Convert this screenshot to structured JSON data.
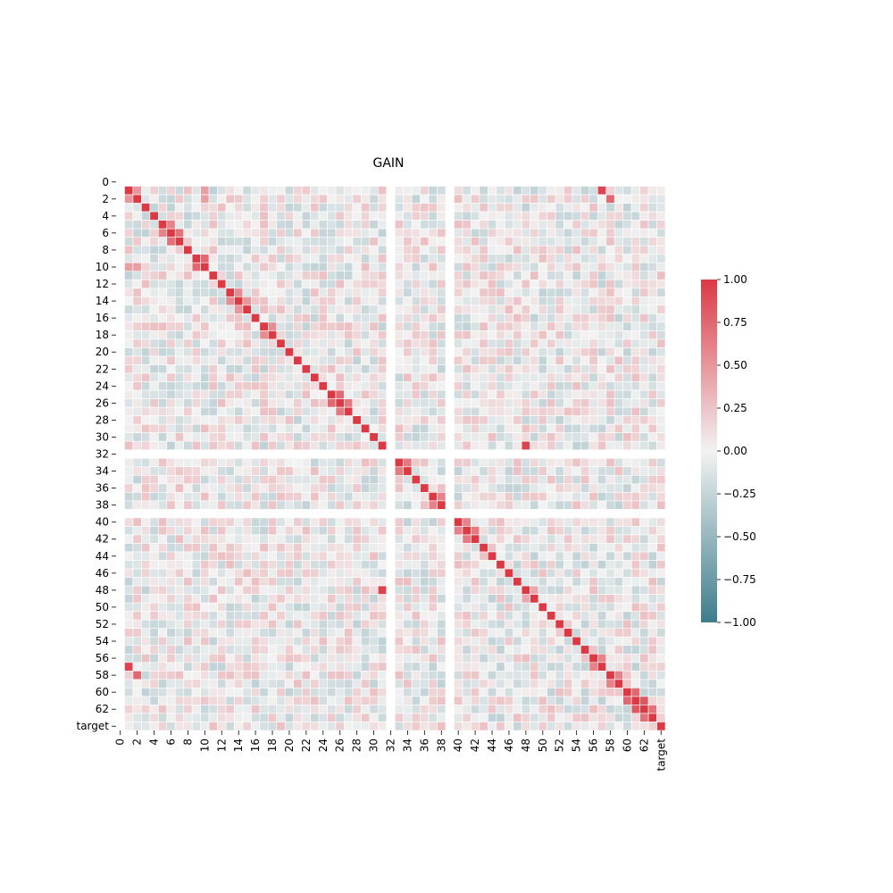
{
  "chart_data": {
    "type": "heatmap",
    "title": "GAIN",
    "xlabel": "",
    "ylabel": "",
    "n": 65,
    "x_tick_labels": [
      "0",
      "2",
      "4",
      "6",
      "8",
      "10",
      "12",
      "14",
      "16",
      "18",
      "20",
      "22",
      "24",
      "26",
      "28",
      "30",
      "32",
      "34",
      "36",
      "38",
      "40",
      "42",
      "44",
      "46",
      "48",
      "50",
      "52",
      "54",
      "56",
      "58",
      "60",
      "62",
      "target"
    ],
    "y_tick_labels": [
      "0",
      "2",
      "4",
      "6",
      "8",
      "10",
      "12",
      "14",
      "16",
      "18",
      "20",
      "22",
      "24",
      "26",
      "28",
      "30",
      "32",
      "34",
      "36",
      "38",
      "40",
      "42",
      "44",
      "46",
      "48",
      "50",
      "52",
      "54",
      "56",
      "58",
      "60",
      "62",
      "target"
    ],
    "blank_indices": [
      0,
      32,
      39
    ],
    "strong_pairs": [
      {
        "x": 1,
        "y": 2,
        "value": 0.5
      },
      {
        "x": 1,
        "y": 10,
        "value": 0.45
      },
      {
        "x": 2,
        "y": 10,
        "value": 0.45
      },
      {
        "x": 1,
        "y": 57,
        "value": 0.95
      },
      {
        "x": 2,
        "y": 58,
        "value": 0.75
      },
      {
        "x": 5,
        "y": 6,
        "value": 0.6
      },
      {
        "x": 6,
        "y": 7,
        "value": 0.7
      },
      {
        "x": 9,
        "y": 10,
        "value": 0.75
      },
      {
        "x": 13,
        "y": 14,
        "value": 0.55
      },
      {
        "x": 14,
        "y": 15,
        "value": 0.5
      },
      {
        "x": 17,
        "y": 18,
        "value": 0.55
      },
      {
        "x": 25,
        "y": 26,
        "value": 0.75
      },
      {
        "x": 26,
        "y": 27,
        "value": 0.65
      },
      {
        "x": 31,
        "y": 48,
        "value": 0.95
      },
      {
        "x": 33,
        "y": 34,
        "value": 0.65
      },
      {
        "x": 37,
        "y": 38,
        "value": 0.6
      },
      {
        "x": 40,
        "y": 41,
        "value": 0.6
      },
      {
        "x": 41,
        "y": 42,
        "value": 0.65
      },
      {
        "x": 48,
        "y": 49,
        "value": 0.4
      },
      {
        "x": 60,
        "y": 61,
        "value": 0.75
      },
      {
        "x": 61,
        "y": 62,
        "value": 0.85
      },
      {
        "x": 62,
        "y": 63,
        "value": 0.7
      },
      {
        "x": 58,
        "y": 59,
        "value": 0.6
      },
      {
        "x": 56,
        "y": 57,
        "value": 0.6
      }
    ],
    "colorbar": {
      "vmin": -1.0,
      "vmax": 1.0,
      "ticks": [
        "1.00",
        "0.75",
        "0.50",
        "0.25",
        "0.00",
        "−0.25",
        "−0.50",
        "−0.75",
        "−1.00"
      ],
      "color_low": "#3d7d8b",
      "color_mid": "#f2f2f2",
      "color_high": "#db3a45"
    },
    "grid": false
  }
}
